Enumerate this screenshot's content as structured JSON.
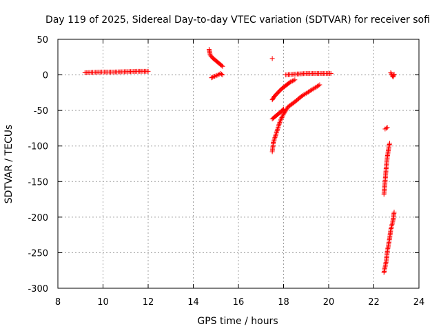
{
  "chart_data": {
    "type": "scatter",
    "title": "Day 119 of 2025, Sidereal Day-to-day VTEC variation (SDTVAR) for receiver sofi",
    "xlabel": "GPS time / hours",
    "ylabel": "SDTVAR / TECUs",
    "xlim": [
      8,
      24
    ],
    "ylim": [
      -300,
      50
    ],
    "x_ticks": [
      "8",
      "10",
      "12",
      "14",
      "16",
      "18",
      "20",
      "22",
      "24"
    ],
    "y_ticks": [
      "50",
      "0",
      "-50",
      "-100",
      "-150",
      "-200",
      "-250",
      "-300"
    ],
    "grid": true,
    "marker": "+",
    "color": "#ff0000",
    "series": [
      {
        "segments": [
          [
            [
              9.2,
              3
            ],
            [
              9.6,
              3.5
            ],
            [
              10.0,
              4
            ],
            [
              10.5,
              4
            ],
            [
              11.0,
              4.5
            ],
            [
              11.5,
              5
            ],
            [
              12.0,
              5
            ]
          ],
          [
            [
              14.7,
              36
            ],
            [
              14.75,
              28
            ],
            [
              14.85,
              24
            ],
            [
              15.0,
              20
            ],
            [
              15.15,
              16
            ],
            [
              15.3,
              12
            ]
          ],
          [
            [
              14.8,
              -4
            ],
            [
              14.95,
              -2
            ],
            [
              15.1,
              0
            ],
            [
              15.2,
              2
            ],
            [
              15.3,
              0
            ]
          ],
          [
            [
              17.5,
              23
            ]
          ],
          [
            [
              17.5,
              -35
            ],
            [
              17.6,
              -30
            ],
            [
              17.75,
              -25
            ],
            [
              17.9,
              -20
            ],
            [
              18.1,
              -15
            ],
            [
              18.3,
              -10
            ],
            [
              18.5,
              -7
            ]
          ],
          [
            [
              17.5,
              -62
            ],
            [
              17.65,
              -58
            ],
            [
              17.8,
              -54
            ],
            [
              17.95,
              -50
            ],
            [
              18.0,
              -48
            ]
          ],
          [
            [
              17.5,
              -108
            ],
            [
              17.55,
              -95
            ],
            [
              17.65,
              -85
            ],
            [
              17.75,
              -75
            ],
            [
              17.85,
              -65
            ],
            [
              18.0,
              -55
            ],
            [
              18.2,
              -45
            ],
            [
              18.5,
              -38
            ],
            [
              18.8,
              -30
            ],
            [
              19.1,
              -24
            ],
            [
              19.4,
              -18
            ],
            [
              19.6,
              -14
            ]
          ],
          [
            [
              18.1,
              0
            ],
            [
              18.5,
              1
            ],
            [
              19.0,
              2
            ],
            [
              19.5,
              2
            ],
            [
              20.0,
              2
            ],
            [
              20.1,
              2
            ]
          ],
          [
            [
              22.5,
              -76
            ],
            [
              22.55,
              -75
            ],
            [
              22.6,
              -74
            ]
          ],
          [
            [
              22.45,
              -168
            ],
            [
              22.5,
              -150
            ],
            [
              22.55,
              -130
            ],
            [
              22.6,
              -115
            ],
            [
              22.65,
              -105
            ],
            [
              22.7,
              -96
            ]
          ],
          [
            [
              22.45,
              -278
            ],
            [
              22.55,
              -262
            ],
            [
              22.6,
              -248
            ],
            [
              22.7,
              -230
            ],
            [
              22.75,
              -218
            ],
            [
              22.85,
              -205
            ],
            [
              22.9,
              -193
            ]
          ],
          [
            [
              22.75,
              3
            ],
            [
              22.8,
              0
            ],
            [
              22.85,
              -3
            ],
            [
              22.9,
              1
            ]
          ]
        ]
      }
    ]
  }
}
